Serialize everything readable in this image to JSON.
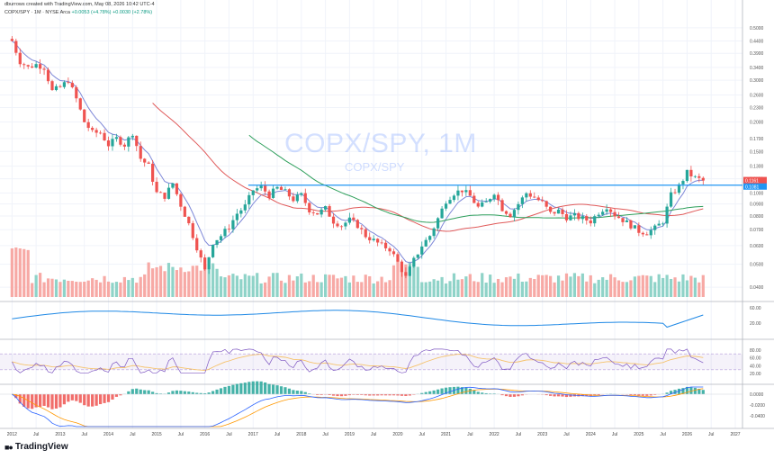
{
  "header": {
    "credit": "dburrows created with TradingView.com, May 08, 2026 10:42 UTC-4",
    "symbol_line": "COPX/SPY · 1M · NYSE Arca",
    "change_1": "+0.0053 (+4.78%)",
    "change_2": "+0.0030 (+2.78%)"
  },
  "watermark": {
    "title": "COPX/SPY, 1M",
    "subtitle": "COPX/SPY"
  },
  "logo": {
    "text": "TradingView",
    "icon": "tradingview-logo-icon"
  },
  "colors": {
    "up": "#26a69a",
    "down": "#ef5350",
    "vol_up": "#8fd3c8",
    "vol_down": "#f7a9a5",
    "ema_fast": "#7e88d8",
    "ma_red": "#e05a5a",
    "ma_green": "#2e9f5b",
    "resistance": "#2196f3",
    "rsi_line": "#7e57c2",
    "rsi_ma": "#f5c26b",
    "macd": "#2962ff",
    "macd_signal": "#ff9800"
  },
  "price_labels": {
    "current": "0.1161",
    "secondary": "0.1081"
  },
  "chart_data": {
    "type": "candlestick",
    "scale": "log",
    "timeframe": "1M",
    "x_labels": [
      "2012",
      "Jul",
      "2013",
      "Jul",
      "2014",
      "Jul",
      "2015",
      "Jul",
      "2016",
      "Jul",
      "2017",
      "Jul",
      "2018",
      "Jul",
      "2019",
      "Jul",
      "2020",
      "Jul",
      "2021",
      "Jul",
      "2022",
      "Jul",
      "2023",
      "Jul",
      "2024",
      "Jul",
      "2025",
      "Jul",
      "2026",
      "Jul",
      "2027"
    ],
    "y_ticks": [
      "0.5000",
      "0.4400",
      "0.3900",
      "0.3400",
      "0.3000",
      "0.2600",
      "0.2300",
      "0.2000",
      "0.1700",
      "0.1500",
      "0.1300",
      "0.1150",
      "0.1000",
      "0.0900",
      "0.0800",
      "0.0700",
      "0.0600",
      "0.0500",
      "0.0400"
    ],
    "ylim": [
      0.037,
      0.55
    ],
    "resistance_level": 0.108,
    "close_series": {
      "dates": [
        "2012-01",
        "2012-03",
        "2012-05",
        "2012-07",
        "2012-09",
        "2012-11",
        "2013-01",
        "2013-03",
        "2013-05",
        "2013-07",
        "2013-09",
        "2013-11",
        "2014-01",
        "2014-03",
        "2014-05",
        "2014-07",
        "2014-09",
        "2014-11",
        "2015-01",
        "2015-03",
        "2015-05",
        "2015-07",
        "2015-09",
        "2015-11",
        "2016-01",
        "2016-03",
        "2016-05",
        "2016-07",
        "2016-09",
        "2016-11",
        "2017-01",
        "2017-03",
        "2017-05",
        "2017-07",
        "2017-09",
        "2017-11",
        "2018-01",
        "2018-03",
        "2018-05",
        "2018-07",
        "2018-09",
        "2018-11",
        "2019-01",
        "2019-03",
        "2019-05",
        "2019-07",
        "2019-09",
        "2019-11",
        "2020-01",
        "2020-03",
        "2020-05",
        "2020-07",
        "2020-09",
        "2020-11",
        "2021-01",
        "2021-03",
        "2021-05",
        "2021-07",
        "2021-09",
        "2021-11",
        "2022-01",
        "2022-03",
        "2022-05",
        "2022-07",
        "2022-09",
        "2022-11",
        "2023-01",
        "2023-03",
        "2023-05",
        "2023-07",
        "2023-09",
        "2023-11",
        "2024-01",
        "2024-03",
        "2024-05",
        "2024-07",
        "2024-09",
        "2024-11",
        "2025-01",
        "2025-03",
        "2025-05",
        "2025-07",
        "2025-09",
        "2025-11",
        "2026-01",
        "2026-03",
        "2026-05"
      ],
      "close": [
        0.44,
        0.36,
        0.34,
        0.35,
        0.34,
        0.27,
        0.28,
        0.3,
        0.25,
        0.2,
        0.18,
        0.18,
        0.16,
        0.17,
        0.16,
        0.18,
        0.14,
        0.13,
        0.1,
        0.097,
        0.11,
        0.089,
        0.074,
        0.059,
        0.047,
        0.062,
        0.066,
        0.072,
        0.082,
        0.088,
        0.103,
        0.106,
        0.098,
        0.105,
        0.101,
        0.094,
        0.098,
        0.085,
        0.082,
        0.086,
        0.076,
        0.073,
        0.077,
        0.073,
        0.066,
        0.063,
        0.06,
        0.058,
        0.051,
        0.044,
        0.052,
        0.06,
        0.066,
        0.078,
        0.093,
        0.1,
        0.103,
        0.097,
        0.087,
        0.091,
        0.101,
        0.086,
        0.081,
        0.09,
        0.1,
        0.096,
        0.091,
        0.082,
        0.084,
        0.079,
        0.08,
        0.078,
        0.076,
        0.083,
        0.088,
        0.081,
        0.077,
        0.073,
        0.069,
        0.068,
        0.071,
        0.076,
        0.098,
        0.107,
        0.122,
        0.116,
        0.113
      ]
    },
    "panes": [
      "price",
      "volume",
      "oscillator",
      "rsi",
      "macd"
    ],
    "oscillator_ticks": [
      "60.00",
      "20.00"
    ],
    "rsi_ticks": [
      "80.00",
      "60.00",
      "40.00",
      "20.00"
    ],
    "macd_ticks": [
      "0.0000",
      "-0.0200",
      "-0.0400"
    ]
  }
}
